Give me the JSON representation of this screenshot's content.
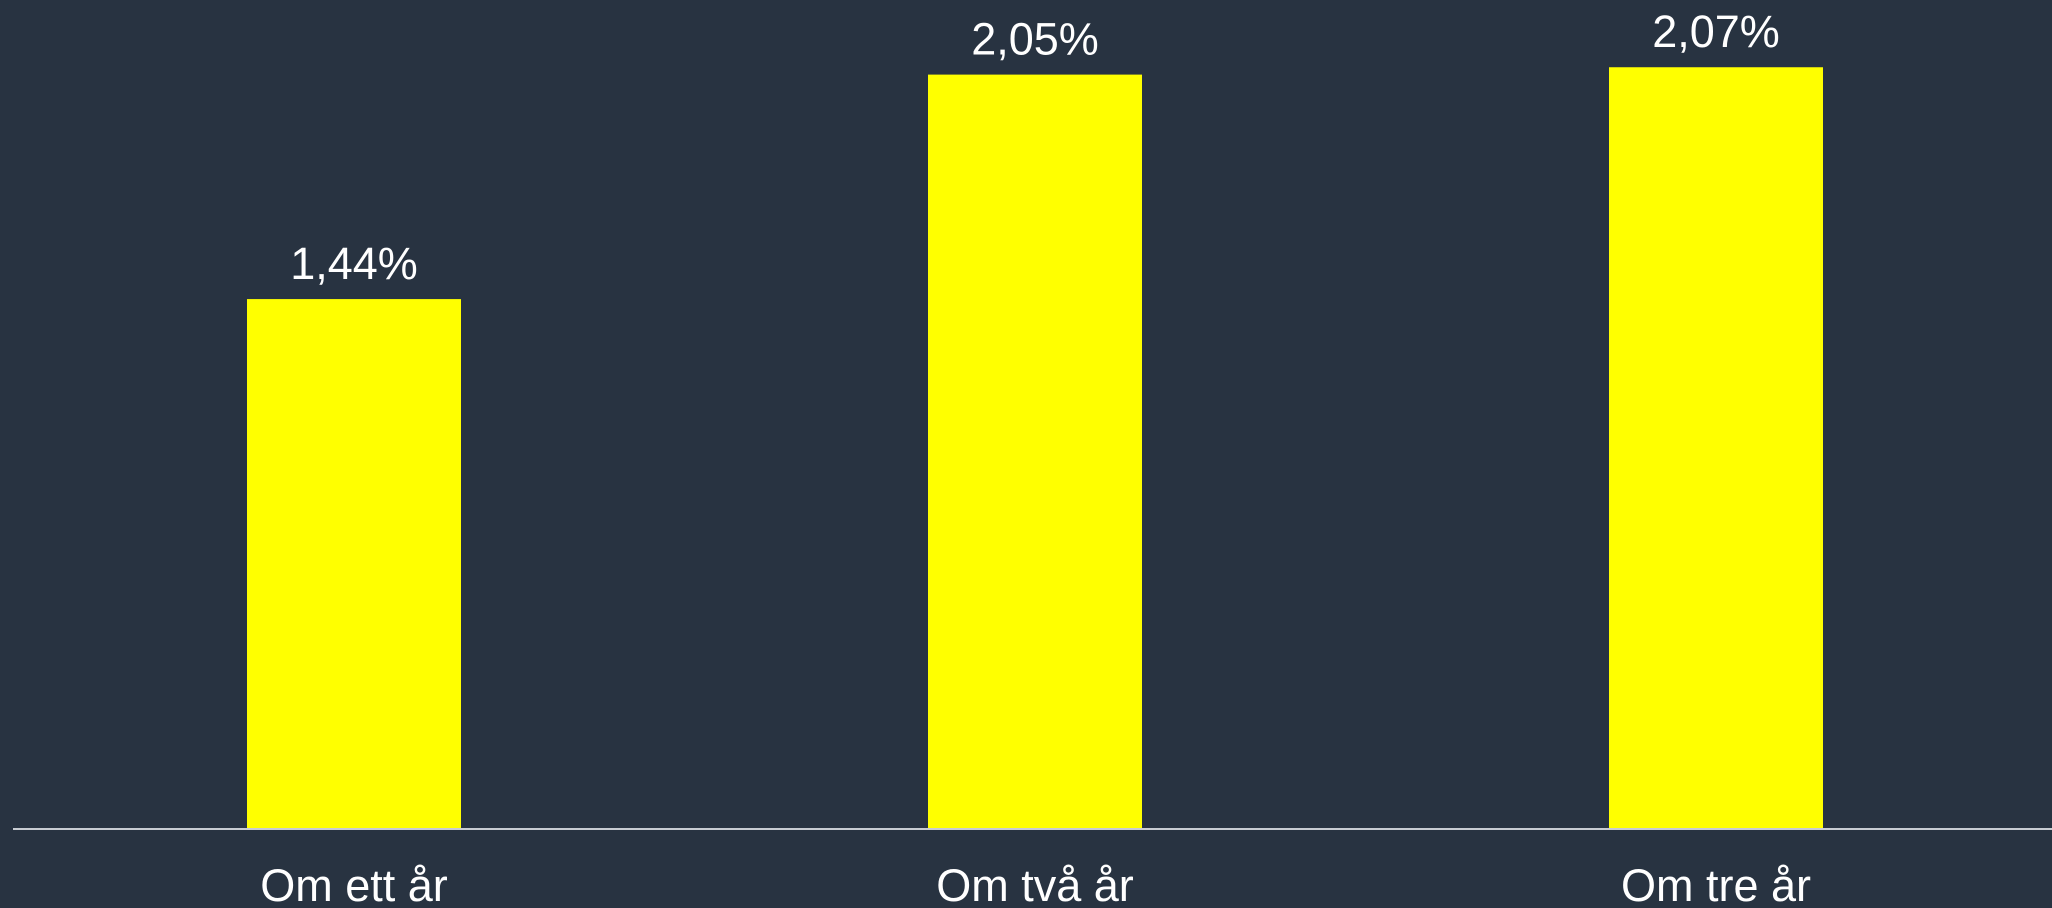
{
  "chart_data": {
    "type": "bar",
    "categories": [
      "Om ett år",
      "Om två år",
      "Om tre år"
    ],
    "values": [
      1.44,
      2.05,
      2.07
    ],
    "value_labels": [
      "1,44%",
      "2,05%",
      "2,07%"
    ],
    "color": "#ffff00"
  }
}
